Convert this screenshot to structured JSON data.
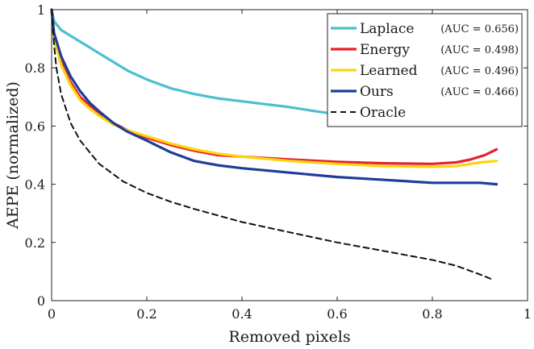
{
  "chart_data": {
    "type": "line",
    "title": "",
    "xlabel": "Removed pixels",
    "ylabel": "AEPE (normalized)",
    "xlim": [
      0,
      1
    ],
    "ylim": [
      0,
      1
    ],
    "xticks": [
      "0",
      "0.2",
      "0.4",
      "0.6",
      "0.8",
      "1"
    ],
    "yticks": [
      "0",
      "0.2",
      "0.4",
      "0.6",
      "0.8",
      "1"
    ],
    "grid": false,
    "legend_position": "top-right",
    "series": [
      {
        "name": "Laplace",
        "auc_label": "(AUC = 0.656)",
        "color": "#4bbfcf",
        "dash": "solid",
        "x": [
          0,
          0.005,
          0.02,
          0.05,
          0.08,
          0.1,
          0.13,
          0.16,
          0.2,
          0.25,
          0.3,
          0.35,
          0.4,
          0.45,
          0.5,
          0.55,
          0.58
        ],
        "y": [
          1.0,
          0.96,
          0.93,
          0.9,
          0.87,
          0.85,
          0.82,
          0.79,
          0.76,
          0.73,
          0.71,
          0.695,
          0.685,
          0.675,
          0.665,
          0.652,
          0.645
        ]
      },
      {
        "name": "Energy",
        "auc_label": "(AUC = 0.498)",
        "color": "#e8202b",
        "dash": "solid",
        "x": [
          0,
          0.005,
          0.02,
          0.04,
          0.06,
          0.08,
          0.1,
          0.13,
          0.16,
          0.2,
          0.25,
          0.3,
          0.35,
          0.4,
          0.5,
          0.6,
          0.7,
          0.8,
          0.85,
          0.88,
          0.91,
          0.935
        ],
        "y": [
          1.0,
          0.9,
          0.82,
          0.75,
          0.7,
          0.67,
          0.64,
          0.61,
          0.585,
          0.56,
          0.535,
          0.515,
          0.5,
          0.495,
          0.485,
          0.477,
          0.472,
          0.47,
          0.475,
          0.485,
          0.5,
          0.52
        ]
      },
      {
        "name": "Learned",
        "auc_label": "(AUC = 0.496)",
        "color": "#fcd40f",
        "dash": "solid",
        "x": [
          0,
          0.005,
          0.02,
          0.04,
          0.06,
          0.08,
          0.1,
          0.13,
          0.16,
          0.2,
          0.25,
          0.3,
          0.35,
          0.4,
          0.5,
          0.6,
          0.7,
          0.8,
          0.85,
          0.9,
          0.935
        ],
        "y": [
          1.0,
          0.9,
          0.81,
          0.74,
          0.69,
          0.66,
          0.635,
          0.605,
          0.585,
          0.565,
          0.54,
          0.52,
          0.505,
          0.495,
          0.48,
          0.47,
          0.462,
          0.46,
          0.462,
          0.475,
          0.48
        ]
      },
      {
        "name": "Ours",
        "auc_label": "(AUC = 0.466)",
        "color": "#1f3d99",
        "dash": "solid",
        "x": [
          0,
          0.005,
          0.02,
          0.04,
          0.06,
          0.08,
          0.1,
          0.13,
          0.16,
          0.2,
          0.25,
          0.3,
          0.35,
          0.4,
          0.5,
          0.6,
          0.7,
          0.8,
          0.85,
          0.9,
          0.935
        ],
        "y": [
          1.0,
          0.92,
          0.84,
          0.77,
          0.72,
          0.68,
          0.65,
          0.61,
          0.58,
          0.55,
          0.51,
          0.48,
          0.465,
          0.455,
          0.44,
          0.425,
          0.415,
          0.405,
          0.405,
          0.405,
          0.4
        ]
      },
      {
        "name": "Oracle",
        "auc_label": "",
        "color": "#111111",
        "dash": "dashed",
        "x": [
          0,
          0.005,
          0.01,
          0.02,
          0.04,
          0.06,
          0.08,
          0.1,
          0.15,
          0.2,
          0.25,
          0.3,
          0.4,
          0.5,
          0.6,
          0.7,
          0.8,
          0.85,
          0.9,
          0.93
        ],
        "y": [
          1.0,
          0.88,
          0.8,
          0.71,
          0.61,
          0.55,
          0.51,
          0.47,
          0.41,
          0.37,
          0.34,
          0.315,
          0.27,
          0.235,
          0.2,
          0.17,
          0.14,
          0.12,
          0.09,
          0.07
        ]
      }
    ]
  }
}
